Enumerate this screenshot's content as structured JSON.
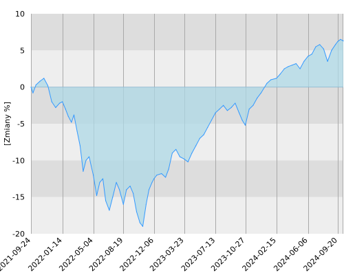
{
  "chart_data": {
    "type": "area",
    "title": "",
    "xlabel": "",
    "ylabel": "[Zmiany %]",
    "ylim": [
      -20,
      10
    ],
    "xlim": [
      "2021-09-24",
      "2024-10-10"
    ],
    "yticks": [
      10,
      5,
      0,
      -5,
      -10,
      -15,
      -20
    ],
    "xticks": [
      "2021-09-24",
      "2022-01-14",
      "2022-05-04",
      "2022-08-19",
      "2022-12-06",
      "2023-03-23",
      "2023-07-13",
      "2023-10-27",
      "2024-02-15",
      "2024-06-06",
      "2024-09-20"
    ],
    "grid": true,
    "legend": "none",
    "colors": {
      "line": "#3399ff",
      "fill": "#add8e6",
      "band_dark": "#dddddd",
      "band_light": "#eeeeee",
      "grid": "#a9a9a9"
    },
    "series": [
      {
        "x": [
          "2021-09-24",
          "2021-10-01",
          "2021-10-12",
          "2021-10-26",
          "2021-11-09",
          "2021-11-23",
          "2021-12-07",
          "2021-12-21",
          "2022-01-04",
          "2022-01-14",
          "2022-01-25",
          "2022-02-04",
          "2022-02-15",
          "2022-02-24",
          "2022-03-07",
          "2022-03-18",
          "2022-03-29",
          "2022-04-08",
          "2022-04-19",
          "2022-05-04",
          "2022-05-16",
          "2022-05-27",
          "2022-06-07",
          "2022-06-17",
          "2022-06-30",
          "2022-07-12",
          "2022-07-25",
          "2022-08-05",
          "2022-08-19",
          "2022-08-30",
          "2022-09-12",
          "2022-09-23",
          "2022-10-05",
          "2022-10-17",
          "2022-10-27",
          "2022-11-08",
          "2022-11-18",
          "2022-11-29",
          "2022-12-06",
          "2022-12-16",
          "2023-01-02",
          "2023-01-16",
          "2023-01-27",
          "2023-02-09",
          "2023-02-22",
          "2023-03-08",
          "2023-03-23",
          "2023-04-06",
          "2023-04-20",
          "2023-05-04",
          "2023-05-18",
          "2023-06-01",
          "2023-06-15",
          "2023-06-29",
          "2023-07-13",
          "2023-07-27",
          "2023-08-10",
          "2023-08-24",
          "2023-09-07",
          "2023-09-21",
          "2023-10-05",
          "2023-10-16",
          "2023-10-27",
          "2023-11-10",
          "2023-11-24",
          "2023-12-08",
          "2023-12-22",
          "2024-01-12",
          "2024-01-26",
          "2024-02-15",
          "2024-02-29",
          "2024-03-14",
          "2024-03-28",
          "2024-04-11",
          "2024-04-25",
          "2024-05-09",
          "2024-05-23",
          "2024-06-06",
          "2024-06-20",
          "2024-07-04",
          "2024-07-18",
          "2024-08-01",
          "2024-08-15",
          "2024-08-29",
          "2024-09-12",
          "2024-09-20",
          "2024-09-30",
          "2024-10-10"
        ],
        "values": [
          0,
          -0.8,
          0.3,
          0.8,
          1.2,
          0.2,
          -2.0,
          -2.8,
          -2.2,
          -2.0,
          -3.0,
          -4.0,
          -4.8,
          -3.8,
          -6.0,
          -8.0,
          -11.5,
          -10.0,
          -9.5,
          -12.0,
          -14.8,
          -13.0,
          -12.5,
          -15.5,
          -16.8,
          -15.0,
          -13.0,
          -14.0,
          -16.0,
          -14.0,
          -13.5,
          -14.5,
          -17.0,
          -18.5,
          -19.0,
          -16.0,
          -14.0,
          -13.0,
          -12.5,
          -12.0,
          -11.8,
          -12.3,
          -11.2,
          -9.0,
          -8.5,
          -9.5,
          -9.8,
          -10.2,
          -9.0,
          -8.0,
          -7.0,
          -6.5,
          -5.5,
          -4.5,
          -3.5,
          -3.0,
          -2.5,
          -3.2,
          -2.8,
          -2.2,
          -3.5,
          -4.5,
          -5.2,
          -3.0,
          -2.5,
          -1.5,
          -0.8,
          0.5,
          1.0,
          1.2,
          1.8,
          2.5,
          2.8,
          3.0,
          3.2,
          2.5,
          3.5,
          4.2,
          4.5,
          5.5,
          5.8,
          5.2,
          3.5,
          5.0,
          5.8,
          6.2,
          6.5,
          6.3
        ]
      }
    ]
  }
}
